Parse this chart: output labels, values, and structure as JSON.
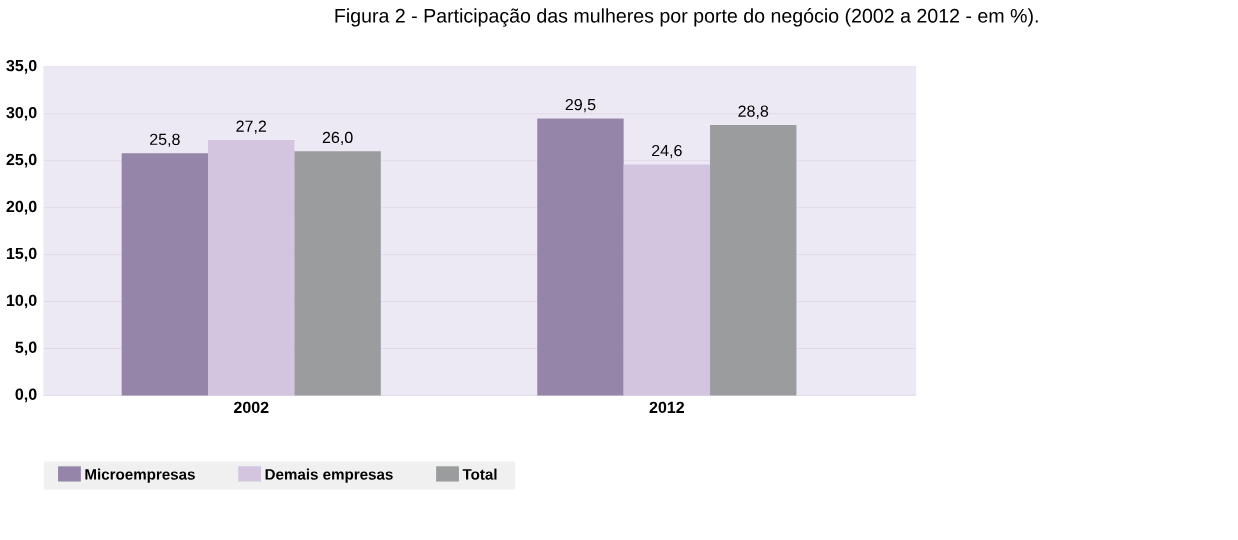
{
  "chart_data": {
    "type": "bar",
    "title": "Figura 2 - Participação das mulheres por porte do negócio (2002 a 2012 - em %).",
    "categories": [
      "2002",
      "2012"
    ],
    "series": [
      {
        "name": "Microempresas",
        "color": "#9585a8",
        "values": [
          25.8,
          29.5
        ],
        "value_labels": [
          "25,8",
          "29,5"
        ]
      },
      {
        "name": "Demais empresas",
        "color": "#d3c4e0",
        "values": [
          27.2,
          24.6
        ],
        "value_labels": [
          "27,2",
          "24,6"
        ]
      },
      {
        "name": "Total",
        "color": "#9a9c9d",
        "values": [
          26.0,
          28.8
        ],
        "value_labels": [
          "26,0",
          "28,8"
        ]
      }
    ],
    "ylim": [
      0,
      35
    ],
    "yticks": [
      {
        "value": 0,
        "label": "0,0"
      },
      {
        "value": 5,
        "label": "5,0"
      },
      {
        "value": 10,
        "label": "10,0"
      },
      {
        "value": 15,
        "label": "15,0"
      },
      {
        "value": 20,
        "label": "20,0"
      },
      {
        "value": 25,
        "label": "25,0"
      },
      {
        "value": 30,
        "label": "30,0"
      },
      {
        "value": 35,
        "label": "35,0"
      }
    ],
    "grid": "y",
    "legend": "bottom"
  }
}
